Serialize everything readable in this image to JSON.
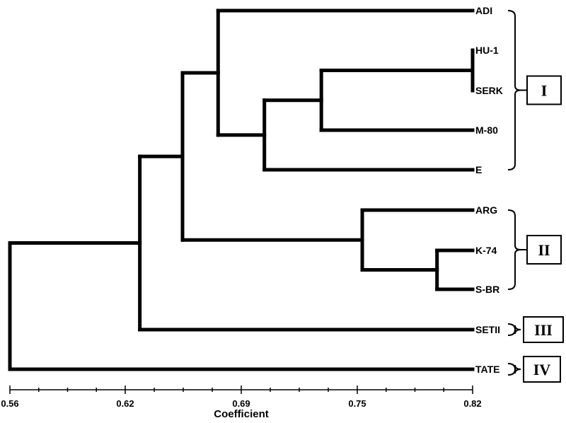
{
  "chart_data": {
    "type": "dendrogram",
    "xlabel": "Coefficient",
    "xlim": [
      0.56,
      0.82
    ],
    "ticks": [
      "0.56",
      "0.62",
      "0.69",
      "0.75",
      "0.82"
    ],
    "leaves": [
      "ADI",
      "HU-1",
      "SERK",
      "M-80",
      "E",
      "ARG",
      "K-74",
      "S-BR",
      "SETII",
      "TATE"
    ],
    "merges": [
      {
        "members": [
          "HU-1",
          "SERK"
        ],
        "coefficient": 0.82
      },
      {
        "members": [
          "K-74",
          "S-BR"
        ],
        "coefficient": 0.8
      },
      {
        "members": [
          "HU-1",
          "SERK",
          "M-80"
        ],
        "coefficient": 0.735
      },
      {
        "members": [
          "ARG",
          "K-74",
          "S-BR"
        ],
        "coefficient": 0.758
      },
      {
        "members": [
          "HU-1",
          "SERK",
          "M-80",
          "E"
        ],
        "coefficient": 0.703
      },
      {
        "members": [
          "ADI",
          "HU-1",
          "SERK",
          "M-80",
          "E"
        ],
        "coefficient": 0.677
      },
      {
        "members": [
          "ADI",
          "HU-1",
          "SERK",
          "M-80",
          "E",
          "ARG",
          "K-74",
          "S-BR"
        ],
        "coefficient": 0.657
      },
      {
        "members": [
          "ADI",
          "HU-1",
          "SERK",
          "M-80",
          "E",
          "ARG",
          "K-74",
          "S-BR",
          "SETII"
        ],
        "coefficient": 0.633
      },
      {
        "members": [
          "ADI",
          "HU-1",
          "SERK",
          "M-80",
          "E",
          "ARG",
          "K-74",
          "S-BR",
          "SETII",
          "TATE"
        ],
        "coefficient": 0.56
      }
    ],
    "clusters": [
      {
        "label": "I",
        "members": [
          "ADI",
          "HU-1",
          "SERK",
          "M-80",
          "E"
        ]
      },
      {
        "label": "II",
        "members": [
          "ARG",
          "K-74",
          "S-BR"
        ]
      },
      {
        "label": "III",
        "members": [
          "SETII"
        ]
      },
      {
        "label": "IV",
        "members": [
          "TATE"
        ]
      }
    ]
  }
}
